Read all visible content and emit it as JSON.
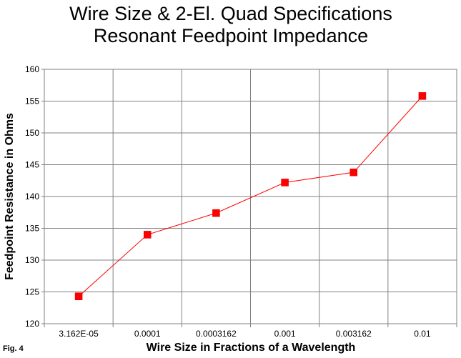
{
  "chart_data": {
    "type": "line",
    "title": "Wire Size & 2-El. Quad Specifications",
    "subtitle": "Resonant Feedpoint Impedance",
    "xlabel": "Wire Size in Fractions of a Wavelength",
    "ylabel": "Feedpoint Resistance in Ohms",
    "figure_label": "Fig. 4",
    "categories": [
      "3.162E-05",
      "0.0001",
      "0.0003162",
      "0.001",
      "0.003162",
      "0.01"
    ],
    "series": [
      {
        "values": [
          124.3,
          134.0,
          137.4,
          142.2,
          143.8,
          155.8
        ],
        "color": "#ff0000"
      }
    ],
    "ylim": [
      120,
      160
    ],
    "y_ticks": [
      "120",
      "125",
      "130",
      "135",
      "140",
      "145",
      "150",
      "155",
      "160"
    ],
    "grid": true,
    "legend": "none"
  }
}
